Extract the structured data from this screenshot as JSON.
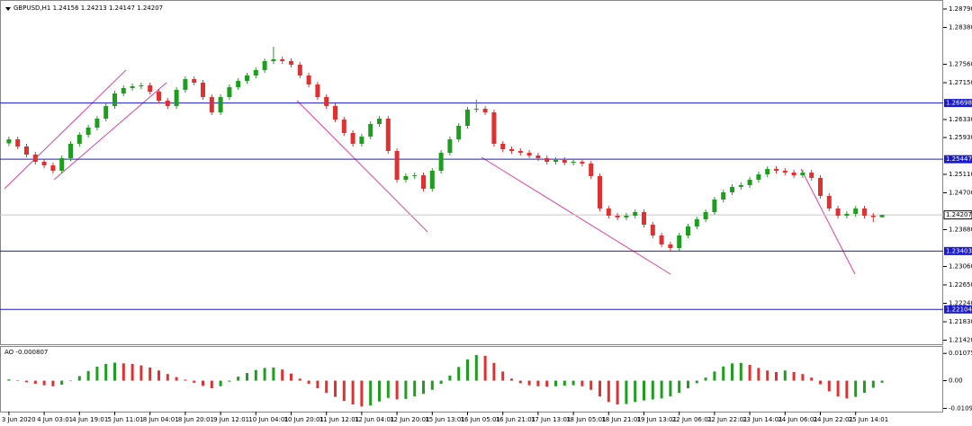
{
  "chart_data": [
    {
      "type": "candlestick",
      "symbol": "GBPUSD,H1",
      "categories": [
        "3 Jun 2020",
        null,
        null,
        null,
        "4 Jun 03:01",
        null,
        null,
        null,
        "4 Jun 19:01",
        null,
        null,
        null,
        "5 Jun 11:01",
        null,
        null,
        null,
        "8 Jun 04:01",
        null,
        null,
        null,
        "8 Jun 20:01",
        null,
        null,
        null,
        "9 Jun 12:01",
        null,
        null,
        null,
        "10 Jun 04:01",
        null,
        null,
        null,
        "10 Jun 20:01",
        null,
        null,
        null,
        "11 Jun 12:01",
        null,
        null,
        null,
        "12 Jun 04:01",
        null,
        null,
        null,
        "12 Jun 20:01",
        null,
        null,
        null,
        "15 Jun 13:01",
        null,
        null,
        null,
        "16 Jun 05:01",
        null,
        null,
        null,
        "16 Jun 21:01",
        null,
        null,
        null,
        "17 Jun 13:01",
        null,
        null,
        null,
        "18 Jun 05:01",
        null,
        null,
        null,
        "18 Jun 21:01",
        null,
        null,
        null,
        "19 Jun 13:01",
        null,
        null,
        null,
        "22 Jun 06:01",
        null,
        null,
        null,
        "22 Jun 22:01",
        null,
        null,
        null,
        "23 Jun 14:01",
        null,
        null,
        null,
        "24 Jun 06:01",
        null,
        null,
        null,
        "24 Jun 22:01",
        null,
        null,
        null,
        "25 Jun 14:01",
        null,
        null,
        null
      ],
      "open": [
        1.258,
        1.2589,
        1.2573,
        1.2555,
        1.2539,
        1.2531,
        1.2519,
        1.2547,
        1.2579,
        1.2599,
        1.2615,
        1.2635,
        1.2663,
        1.2691,
        1.2703,
        1.2707,
        1.2709,
        1.2695,
        1.2675,
        1.2663,
        1.2699,
        1.2723,
        1.2715,
        1.2683,
        1.2649,
        1.2683,
        1.2705,
        1.2719,
        1.2731,
        1.2743,
        1.2763,
        1.2767,
        1.2763,
        1.2755,
        1.2731,
        1.2711,
        1.2683,
        1.2663,
        1.2633,
        1.2603,
        1.2579,
        1.2595,
        1.2623,
        1.2635,
        1.2563,
        1.2499,
        1.2507,
        1.2509,
        1.2479,
        1.2519,
        1.2559,
        1.2589,
        1.2619,
        1.2655,
        1.2657,
        1.2649,
        1.2579,
        1.2567,
        1.2563,
        1.2559,
        1.2553,
        1.2547,
        1.2539,
        1.2543,
        1.2537,
        1.2539,
        1.2535,
        1.2507,
        1.2435,
        1.2419,
        1.2415,
        1.2419,
        1.2427,
        1.2399,
        1.2375,
        1.2355,
        1.2347,
        1.2375,
        1.2395,
        1.2411,
        1.2427,
        1.2455,
        1.2471,
        1.2483,
        1.2487,
        1.2499,
        1.2511,
        1.2523,
        1.2519,
        1.2515,
        1.2509,
        1.2515,
        1.2503,
        1.2463,
        1.2435,
        1.2419,
        1.2423,
        1.2435,
        1.2419,
        1.24156
      ],
      "high": [
        1.2595,
        1.2595,
        1.2579,
        1.2561,
        1.2545,
        1.2537,
        1.2553,
        1.2585,
        1.2605,
        1.2621,
        1.2641,
        1.2669,
        1.2697,
        1.2709,
        1.2713,
        1.2715,
        1.2715,
        1.2701,
        1.2681,
        1.2705,
        1.2729,
        1.2729,
        1.2721,
        1.2689,
        1.2689,
        1.2711,
        1.2725,
        1.2737,
        1.2749,
        1.2769,
        1.2795,
        1.2773,
        1.2769,
        1.2761,
        1.2737,
        1.2717,
        1.2689,
        1.2669,
        1.2639,
        1.2609,
        1.2601,
        1.2629,
        1.2641,
        1.2641,
        1.2569,
        1.2513,
        1.2515,
        1.2515,
        1.2525,
        1.2565,
        1.2595,
        1.2625,
        1.2661,
        1.2677,
        1.2663,
        1.2655,
        1.2585,
        1.2573,
        1.2569,
        1.2565,
        1.2559,
        1.2553,
        1.2549,
        1.2549,
        1.2545,
        1.2545,
        1.2541,
        1.2513,
        1.2441,
        1.2425,
        1.2425,
        1.2433,
        1.2433,
        1.2405,
        1.2381,
        1.2361,
        1.2381,
        1.2401,
        1.2417,
        1.2433,
        1.2461,
        1.2477,
        1.2489,
        1.2493,
        1.2505,
        1.2517,
        1.2529,
        1.2529,
        1.2525,
        1.2521,
        1.2521,
        1.2521,
        1.2509,
        1.2469,
        1.2441,
        1.2429,
        1.2441,
        1.2441,
        1.2425,
        1.24213
      ],
      "low": [
        1.2574,
        1.2567,
        1.2549,
        1.2533,
        1.2525,
        1.2513,
        1.2513,
        1.2541,
        1.2573,
        1.2593,
        1.2609,
        1.2629,
        1.2657,
        1.2685,
        1.2697,
        1.2701,
        1.2689,
        1.2669,
        1.2657,
        1.2657,
        1.2693,
        1.2709,
        1.2677,
        1.2643,
        1.2643,
        1.2677,
        1.2699,
        1.2713,
        1.2725,
        1.2737,
        1.2757,
        1.2757,
        1.2749,
        1.2725,
        1.2705,
        1.2677,
        1.2657,
        1.2627,
        1.2597,
        1.2573,
        1.2573,
        1.2589,
        1.2617,
        1.2557,
        1.2493,
        1.2493,
        1.2501,
        1.2473,
        1.2473,
        1.2513,
        1.2553,
        1.2583,
        1.2613,
        1.2649,
        1.2643,
        1.2573,
        1.2561,
        1.2557,
        1.2553,
        1.2547,
        1.2541,
        1.2533,
        1.2533,
        1.2531,
        1.2531,
        1.2529,
        1.2501,
        1.2429,
        1.2413,
        1.2409,
        1.2409,
        1.2413,
        1.2393,
        1.2369,
        1.2349,
        1.2341,
        1.2341,
        1.2369,
        1.2389,
        1.2405,
        1.2421,
        1.2449,
        1.2465,
        1.2477,
        1.2481,
        1.2493,
        1.2505,
        1.2513,
        1.2509,
        1.2503,
        1.2503,
        1.2497,
        1.2457,
        1.2429,
        1.2413,
        1.2413,
        1.2417,
        1.2413,
        1.2405,
        1.24147
      ],
      "close": [
        1.2589,
        1.2573,
        1.2555,
        1.2539,
        1.2531,
        1.2519,
        1.2547,
        1.2579,
        1.2599,
        1.2615,
        1.2635,
        1.2663,
        1.2691,
        1.2703,
        1.2707,
        1.2709,
        1.2695,
        1.2675,
        1.2663,
        1.2699,
        1.2723,
        1.2715,
        1.2683,
        1.2649,
        1.2683,
        1.2705,
        1.2719,
        1.2731,
        1.2743,
        1.2763,
        1.2767,
        1.2763,
        1.2755,
        1.2731,
        1.2711,
        1.2683,
        1.2663,
        1.2633,
        1.2603,
        1.2579,
        1.2595,
        1.2623,
        1.2635,
        1.2563,
        1.2499,
        1.2507,
        1.2509,
        1.2479,
        1.2519,
        1.2559,
        1.2589,
        1.2619,
        1.2655,
        1.2657,
        1.2649,
        1.2579,
        1.2567,
        1.2563,
        1.2559,
        1.2553,
        1.2547,
        1.2539,
        1.2543,
        1.2537,
        1.2539,
        1.2535,
        1.2507,
        1.2435,
        1.2419,
        1.2415,
        1.2419,
        1.2427,
        1.2399,
        1.2375,
        1.2355,
        1.2347,
        1.2375,
        1.2395,
        1.2411,
        1.2427,
        1.2455,
        1.2471,
        1.2483,
        1.2487,
        1.2499,
        1.2511,
        1.2523,
        1.2519,
        1.2515,
        1.2509,
        1.2515,
        1.2503,
        1.2463,
        1.2435,
        1.2419,
        1.2423,
        1.2435,
        1.2419,
        1.2416,
        1.24207
      ],
      "up_color": "#1e9e1e",
      "down_color": "#e03030",
      "ylim": [
        1.2133,
        1.2899
      ],
      "yticks": [
        {
          "value": 1.2879,
          "label": "1.28790"
        },
        {
          "value": 1.2838,
          "label": "1.28380"
        },
        {
          "value": 1.2756,
          "label": "1.27560"
        },
        {
          "value": 1.2715,
          "label": "1.27150"
        },
        {
          "value": 1.2633,
          "label": "1.26330"
        },
        {
          "value": 1.2593,
          "label": "1.25930"
        },
        {
          "value": 1.2511,
          "label": "1.25110"
        },
        {
          "value": 1.247,
          "label": "1.24700"
        },
        {
          "value": 1.2388,
          "label": "1.23880"
        },
        {
          "value": 1.2306,
          "label": "1.23060"
        },
        {
          "value": 1.2265,
          "label": "1.22650"
        },
        {
          "value": 1.2224,
          "label": "1.22240"
        },
        {
          "value": 1.2183,
          "label": "1.21830"
        },
        {
          "value": 1.2142,
          "label": "1.21420"
        }
      ],
      "levels": [
        1.26698,
        1.25447,
        1.23403,
        1.22104
      ],
      "level_color": "#1a1acc"
    },
    {
      "type": "bar",
      "name": "AO",
      "values": [
        0.0005,
        0.0002,
        -0.0006,
        -0.0012,
        -0.0018,
        -0.0022,
        -0.0016,
        -0.0002,
        0.0018,
        0.0038,
        0.0055,
        0.0066,
        0.0071,
        0.0068,
        0.0066,
        0.006,
        0.0052,
        0.004,
        0.0026,
        0.0014,
        0.0004,
        -0.0008,
        -0.002,
        -0.003,
        -0.0022,
        -0.0004,
        0.0016,
        0.003,
        0.0042,
        0.005,
        0.0052,
        0.0044,
        0.0028,
        0.0008,
        -0.0012,
        -0.003,
        -0.0048,
        -0.0064,
        -0.008,
        -0.0094,
        -0.0102,
        -0.0098,
        -0.0082,
        -0.0068,
        -0.0074,
        -0.0072,
        -0.0062,
        -0.0052,
        -0.0036,
        -0.0012,
        0.002,
        0.0054,
        0.0084,
        0.0101,
        0.0098,
        0.007,
        0.0036,
        0.0008,
        -0.001,
        -0.0018,
        -0.0022,
        -0.0024,
        -0.0022,
        -0.002,
        -0.0018,
        -0.0022,
        -0.0036,
        -0.0062,
        -0.0084,
        -0.0094,
        -0.0092,
        -0.0084,
        -0.0078,
        -0.0074,
        -0.007,
        -0.0062,
        -0.0048,
        -0.003,
        -0.001,
        0.0012,
        0.0036,
        0.0056,
        0.0068,
        0.007,
        0.0062,
        0.005,
        0.004,
        0.0034,
        0.004,
        0.0034,
        0.0026,
        0.0012,
        -0.0014,
        -0.0042,
        -0.0062,
        -0.007,
        -0.0064,
        -0.0048,
        -0.0028,
        -0.000807
      ],
      "up_color": "#1e9e1e",
      "down_color": "#e03030",
      "ylim": [
        -0.0122,
        0.0133
      ],
      "yticks": [
        0.010751,
        {
          "value": 0,
          "label": "0.00"
        },
        -0.010929
      ]
    }
  ]
}
